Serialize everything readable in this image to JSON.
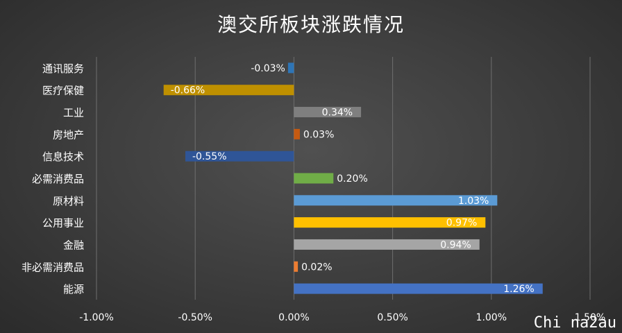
{
  "chart_data": {
    "type": "bar",
    "orientation": "horizontal",
    "title": "澳交所板块涨跌情况",
    "categories": [
      "通讯服务",
      "医疗保健",
      "工业",
      "房地产",
      "信息技术",
      "必需消费品",
      "原材料",
      "公用事业",
      "金融",
      "非必需消费品",
      "能源"
    ],
    "values": [
      -0.03,
      -0.66,
      0.34,
      0.03,
      -0.55,
      0.2,
      1.03,
      0.97,
      0.94,
      0.02,
      1.26
    ],
    "value_labels": [
      "-0.03%",
      "-0.66%",
      "0.34%",
      "0.03%",
      "-0.55%",
      "0.20%",
      "1.03%",
      "0.97%",
      "0.94%",
      "0.02%",
      "1.26%"
    ],
    "colors": [
      "#2e75b6",
      "#bf9000",
      "#7f7f7f",
      "#c55a11",
      "#2f5597",
      "#70ad47",
      "#5b9bd5",
      "#ffc000",
      "#a5a5a5",
      "#ed7d31",
      "#4472c4"
    ],
    "xlim": [
      -1.0,
      1.5
    ],
    "xticks": [
      -1.0,
      -0.5,
      0.0,
      0.5,
      1.0,
      1.5
    ],
    "xtick_labels": [
      "-1.00%",
      "-0.50%",
      "0.00%",
      "0.50%",
      "1.00%",
      "1.50%"
    ],
    "grid": true,
    "legend": "none"
  },
  "watermark": "Chi na2au"
}
